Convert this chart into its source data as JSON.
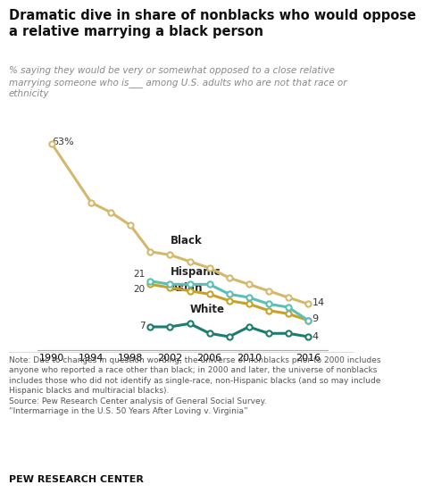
{
  "title": "Dramatic dive in share of nonblacks who would oppose\na relative marrying a black person",
  "subtitle": "% saying they would be very or somewhat opposed to a close relative\nmarrying someone who is___ among U.S. adults who are not that race or\nethnicity",
  "note": "Note: Due to changes in question wording, the universe of nonblacks prior to 2000 includes\nanyone who reported a race other than black; in 2000 and later, the universe of nonblacks\nincludes those who did not identify as single-race, non-Hispanic blacks (and so may include\nHispanic blacks and multiracial blacks).\nSource: Pew Research Center analysis of General Social Survey.\n“Intermarriage in the U.S. 50 Years After Loving v. Virginia”",
  "footer": "PEW RESEARCH CENTER",
  "series": {
    "Black": {
      "color": "#d4b96a",
      "years": [
        1990,
        1994,
        1996,
        1998,
        2000,
        2002,
        2004,
        2006,
        2008,
        2010,
        2012,
        2014,
        2016
      ],
      "values": [
        63,
        45,
        42,
        38,
        30,
        29,
        27,
        25,
        22,
        20,
        18,
        16,
        14
      ]
    },
    "Hispanic": {
      "color": "#5bbfb5",
      "years": [
        2000,
        2002,
        2004,
        2006,
        2008,
        2010,
        2012,
        2014,
        2016
      ],
      "values": [
        21,
        20,
        20,
        20,
        17,
        16,
        14,
        13,
        9
      ]
    },
    "Asian": {
      "color": "#c8a227",
      "years": [
        2000,
        2002,
        2004,
        2006,
        2008,
        2010,
        2012,
        2014,
        2016
      ],
      "values": [
        20,
        19,
        18,
        17,
        15,
        14,
        12,
        11,
        9
      ]
    },
    "White": {
      "color": "#1a7d6e",
      "years": [
        2000,
        2002,
        2004,
        2006,
        2008,
        2010,
        2012,
        2014,
        2016
      ],
      "values": [
        7,
        7,
        8,
        5,
        4,
        7,
        5,
        5,
        4
      ]
    }
  },
  "xlim": [
    1988.5,
    2018.0
  ],
  "ylim": [
    0,
    70
  ],
  "xticks": [
    1990,
    1994,
    1998,
    2002,
    2006,
    2010,
    2016
  ],
  "bg_color": "#ffffff",
  "plot_bg": "#ffffff",
  "label_Black": "Black",
  "label_Hispanic": "Hispanic",
  "label_Asian": "Asian",
  "label_White": "White"
}
